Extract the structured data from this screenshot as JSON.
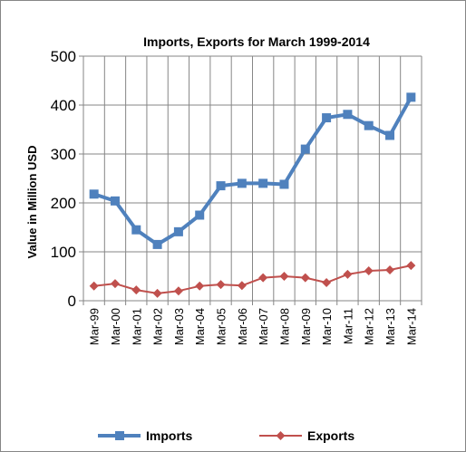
{
  "chart_data": {
    "type": "line",
    "title": "Imports, Exports for March 1999-2014",
    "xlabel": "",
    "ylabel": "Value in  Million  USD",
    "ylim": [
      0,
      500
    ],
    "yticks": [
      0,
      100,
      200,
      300,
      400,
      500
    ],
    "grid": true,
    "legend_position": "bottom",
    "categories": [
      "Mar-99",
      "Mar-00",
      "Mar-01",
      "Mar-02",
      "Mar-03",
      "Mar-04",
      "Mar-05",
      "Mar-06",
      "Mar-07",
      "Mar-08",
      "Mar-09",
      "Mar-10",
      "Mar-11",
      "Mar-12",
      "Mar-13",
      "Mar-14"
    ],
    "series": [
      {
        "name": "Imports",
        "color": "#4F81BD",
        "marker": "square",
        "values": [
          218,
          204,
          145,
          115,
          141,
          175,
          235,
          240,
          240,
          238,
          310,
          374,
          381,
          358,
          338,
          416
        ]
      },
      {
        "name": "Exports",
        "color": "#C0504D",
        "marker": "diamond",
        "values": [
          30,
          35,
          22,
          15,
          20,
          30,
          33,
          31,
          47,
          50,
          47,
          37,
          54,
          61,
          63,
          72
        ]
      }
    ]
  }
}
